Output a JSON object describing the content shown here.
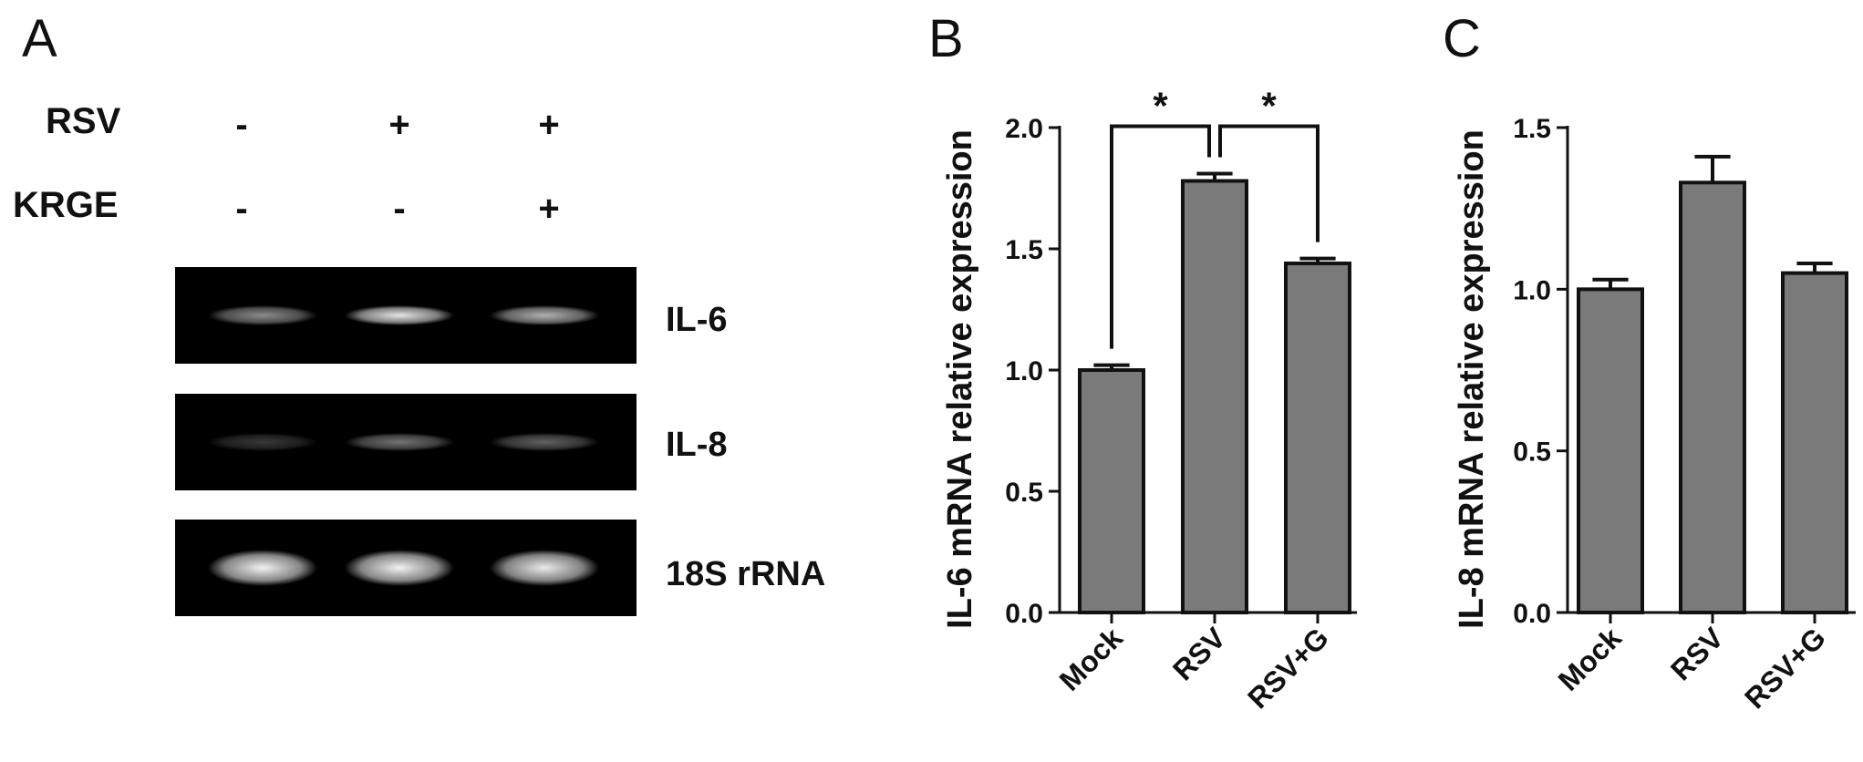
{
  "panels": {
    "a_letter": "A",
    "b_letter": "B",
    "c_letter": "C"
  },
  "gel": {
    "rows": [
      {
        "label": "RSV",
        "signs": [
          "-",
          "+",
          "+"
        ]
      },
      {
        "label": "KRGE",
        "signs": [
          "-",
          "-",
          "+"
        ]
      }
    ],
    "bands": [
      {
        "gene": "IL-6",
        "intensity": [
          0.55,
          0.9,
          0.7
        ]
      },
      {
        "gene": "IL-8",
        "intensity": [
          0.22,
          0.45,
          0.38
        ]
      },
      {
        "gene": "18S rRNA",
        "intensity": [
          0.95,
          0.95,
          0.92
        ]
      }
    ],
    "colors": {
      "gel": "#000000",
      "band": "#ffffff"
    }
  },
  "chart_data": [
    {
      "type": "bar",
      "panel": "B",
      "categories": [
        "Mock",
        "RSV",
        "RSV+G"
      ],
      "values": [
        1.0,
        1.78,
        1.44
      ],
      "errors": [
        0.02,
        0.03,
        0.02
      ],
      "ylabel": "IL-6 mRNA relative expression",
      "ylim": [
        0,
        2.0
      ],
      "yticks": [
        "0.0",
        "0.5",
        "1.0",
        "1.5",
        "2.0"
      ],
      "significance": [
        {
          "from": 0,
          "to": 1,
          "label": "*"
        },
        {
          "from": 1,
          "to": 2,
          "label": "*"
        }
      ],
      "bar_color": "#7a7a7a",
      "edge_color": "#111111"
    },
    {
      "type": "bar",
      "panel": "C",
      "categories": [
        "Mock",
        "RSV",
        "RSV+G"
      ],
      "values": [
        1.0,
        1.33,
        1.05
      ],
      "errors": [
        0.03,
        0.08,
        0.03
      ],
      "ylabel": "IL-8 mRNA relative expression",
      "ylim": [
        0,
        1.5
      ],
      "yticks": [
        "0.0",
        "0.5",
        "1.0",
        "1.5"
      ],
      "significance": [],
      "bar_color": "#7a7a7a",
      "edge_color": "#111111"
    }
  ]
}
